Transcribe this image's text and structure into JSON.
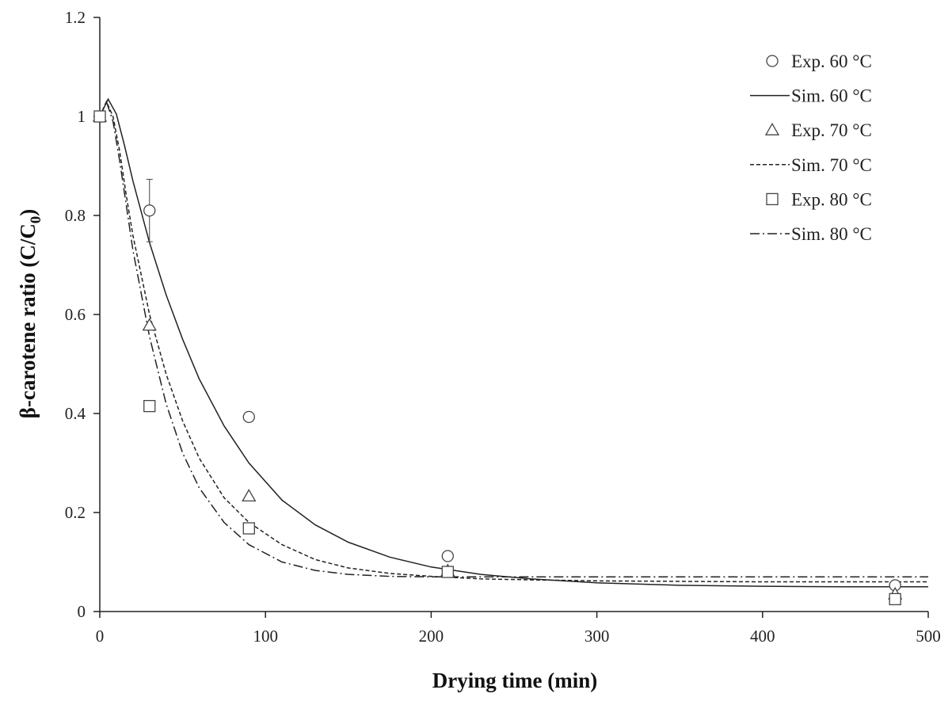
{
  "chart_data": {
    "type": "scatter",
    "title": "",
    "xlabel": "Drying time (min)",
    "ylabel": "β-carotene ratio (C/C",
    "ylabel_subscript": "0",
    "ylabel_close": ")",
    "xlim": [
      0,
      500
    ],
    "ylim": [
      0,
      1.2
    ],
    "xticks": [
      0,
      100,
      200,
      300,
      400,
      500
    ],
    "xtick_labels": [
      "0",
      "100",
      "200",
      "300",
      "400",
      "500"
    ],
    "yticks": [
      0,
      0.2,
      0.4,
      0.6,
      0.8,
      1.0,
      1.2
    ],
    "ytick_labels": [
      "0",
      "0.2",
      "0.4",
      "0.6",
      "0.8",
      "1",
      "1.2"
    ],
    "grid": false,
    "legend_position": "top-right",
    "experimental": [
      {
        "name": "Exp. 60 °C",
        "marker": "circle",
        "x": [
          0,
          30,
          90,
          210,
          480
        ],
        "y": [
          1.0,
          0.81,
          0.393,
          0.112,
          0.053
        ],
        "error": [
          0,
          0.063,
          0,
          0,
          0
        ]
      },
      {
        "name": "Exp. 70 °C",
        "marker": "triangle",
        "x": [
          0,
          30,
          90,
          210,
          480
        ],
        "y": [
          1.0,
          0.578,
          0.233,
          0.082,
          0.035
        ],
        "error": [
          0,
          0,
          0,
          0,
          0
        ]
      },
      {
        "name": "Exp. 80 °C",
        "marker": "square",
        "x": [
          0,
          30,
          90,
          210,
          480
        ],
        "y": [
          1.0,
          0.415,
          0.168,
          0.08,
          0.025
        ],
        "error": [
          0,
          0,
          0,
          0,
          0
        ]
      }
    ],
    "simulated": [
      {
        "name": "Sim. 60 °C",
        "dash": "solid",
        "x": [
          0,
          5,
          10,
          15,
          20,
          30,
          40,
          50,
          60,
          75,
          90,
          110,
          130,
          150,
          175,
          200,
          230,
          260,
          300,
          350,
          400,
          450,
          500
        ],
        "y": [
          1.0,
          1.035,
          1.005,
          0.94,
          0.87,
          0.745,
          0.64,
          0.55,
          0.47,
          0.375,
          0.3,
          0.225,
          0.175,
          0.14,
          0.11,
          0.09,
          0.075,
          0.066,
          0.058,
          0.053,
          0.051,
          0.05,
          0.05
        ]
      },
      {
        "name": "Sim. 70 °C",
        "dash": "short",
        "x": [
          0,
          4,
          8,
          12,
          16,
          20,
          30,
          40,
          50,
          60,
          75,
          90,
          110,
          130,
          150,
          175,
          200,
          230,
          260,
          300,
          350,
          400,
          450,
          500
        ],
        "y": [
          1.0,
          1.03,
          1.0,
          0.93,
          0.84,
          0.76,
          0.6,
          0.48,
          0.385,
          0.31,
          0.23,
          0.18,
          0.135,
          0.105,
          0.088,
          0.077,
          0.071,
          0.066,
          0.064,
          0.062,
          0.061,
          0.06,
          0.06,
          0.06
        ]
      },
      {
        "name": "Sim. 80 °C",
        "dash": "dashdot",
        "x": [
          0,
          4,
          8,
          12,
          16,
          20,
          30,
          40,
          50,
          60,
          75,
          90,
          110,
          130,
          150,
          175,
          200,
          230,
          260,
          300,
          350,
          400,
          450,
          500
        ],
        "y": [
          1.0,
          1.03,
          0.99,
          0.91,
          0.82,
          0.73,
          0.555,
          0.42,
          0.32,
          0.25,
          0.18,
          0.135,
          0.1,
          0.083,
          0.075,
          0.071,
          0.07,
          0.07,
          0.07,
          0.07,
          0.07,
          0.07,
          0.07,
          0.07
        ]
      }
    ],
    "legend": [
      {
        "label": "Exp. 60 °C",
        "symbol": "circle"
      },
      {
        "label": "Sim. 60 °C",
        "symbol": "solid"
      },
      {
        "label": "Exp. 70 °C",
        "symbol": "triangle"
      },
      {
        "label": "Sim. 70 °C",
        "symbol": "short"
      },
      {
        "label": "Exp. 80 °C",
        "symbol": "square"
      },
      {
        "label": "Sim. 80 °C",
        "symbol": "dashdot"
      }
    ],
    "colors": {
      "line": "#222222",
      "marker_stroke": "#444444",
      "axis": "#222222"
    }
  }
}
